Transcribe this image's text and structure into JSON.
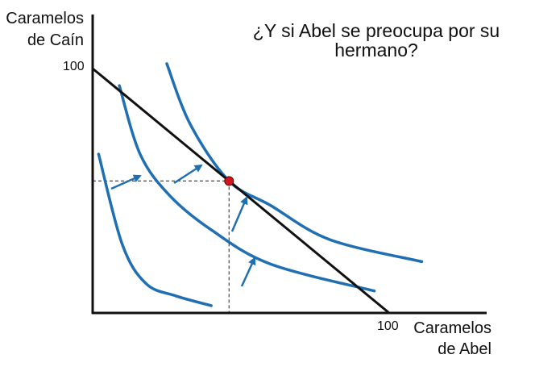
{
  "title": "¿Y si Abel se preocupa por su hermano?",
  "axes": {
    "y_label_line1": "Caramelos",
    "y_label_line2": "de Caín",
    "x_label_line1": "Caramelos",
    "x_label_line2": "de Abel",
    "y_max_tick": "100",
    "x_max_tick": "100"
  },
  "colors": {
    "axis": "#111111",
    "budget_line": "#111111",
    "indifference_curve": "#1f6fb2",
    "arrow": "#1f6fb2",
    "optimum_point": "#d0161e",
    "guide_line": "#444444"
  },
  "chart_data": {
    "type": "diagram",
    "xlim": [
      0,
      100
    ],
    "ylim": [
      0,
      100
    ],
    "budget_line": {
      "from": [
        0,
        100
      ],
      "to": [
        100,
        0
      ]
    },
    "optimum": {
      "x": 46,
      "y": 54
    },
    "indifference_curves": [
      {
        "name": "",
        "points": [
          [
            2,
            65
          ],
          [
            10,
            28
          ],
          [
            18,
            12
          ],
          [
            28,
            7
          ],
          [
            40,
            3
          ]
        ]
      },
      {
        "name": "",
        "points": [
          [
            9,
            93
          ],
          [
            16,
            65
          ],
          [
            26,
            48
          ],
          [
            40,
            34
          ],
          [
            60,
            20
          ],
          [
            95,
            9
          ]
        ]
      },
      {
        "name": "",
        "points": [
          [
            25,
            102
          ],
          [
            33,
            77
          ],
          [
            46,
            54
          ],
          [
            60,
            44
          ],
          [
            80,
            30
          ],
          [
            111,
            21
          ]
        ]
      }
    ],
    "arrows_direction": "toward higher indifference curves (up-right)",
    "dashed_guides": "from optimum to both axes"
  }
}
